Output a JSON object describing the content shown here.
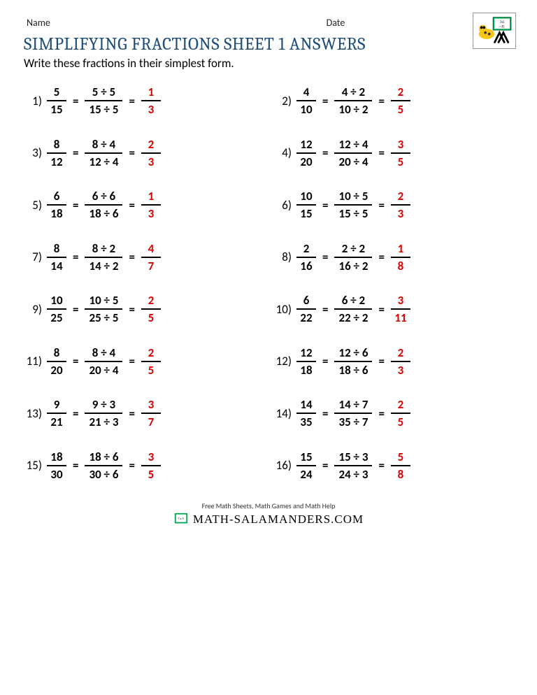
{
  "header": {
    "name_label": "Name",
    "date_label": "Date"
  },
  "title": "SIMPLIFYING FRACTIONS SHEET 1 ANSWERS",
  "instructions": "Write these fractions in their simplest form.",
  "colors": {
    "title_color": "#1f4e79",
    "answer_color": "#d90000",
    "text_color": "#000000",
    "bar_color": "#000000",
    "background": "#ffffff"
  },
  "typography": {
    "title_fontsize": 25,
    "body_fontsize": 17,
    "header_fontsize": 14,
    "font_weight_math": 700
  },
  "problems": [
    {
      "n": 1,
      "num": "5",
      "den": "15",
      "wn": "5 ÷ 5",
      "wd": "15 ÷ 5",
      "an": "1",
      "ad": "3"
    },
    {
      "n": 2,
      "num": "4",
      "den": "10",
      "wn": "4 ÷ 2",
      "wd": "10 ÷ 2",
      "an": "2",
      "ad": "5"
    },
    {
      "n": 3,
      "num": "8",
      "den": "12",
      "wn": "8 ÷ 4",
      "wd": "12 ÷ 4",
      "an": "2",
      "ad": "3"
    },
    {
      "n": 4,
      "num": "12",
      "den": "20",
      "wn": "12 ÷ 4",
      "wd": "20 ÷ 4",
      "an": "3",
      "ad": "5"
    },
    {
      "n": 5,
      "num": "6",
      "den": "18",
      "wn": "6 ÷ 6",
      "wd": "18 ÷ 6",
      "an": "1",
      "ad": "3"
    },
    {
      "n": 6,
      "num": "10",
      "den": "15",
      "wn": "10 ÷ 5",
      "wd": "15 ÷ 5",
      "an": "2",
      "ad": "3"
    },
    {
      "n": 7,
      "num": "8",
      "den": "14",
      "wn": "8 ÷ 2",
      "wd": "14 ÷ 2",
      "an": "4",
      "ad": "7"
    },
    {
      "n": 8,
      "num": "2",
      "den": "16",
      "wn": "2 ÷ 2",
      "wd": "16 ÷ 2",
      "an": "1",
      "ad": "8"
    },
    {
      "n": 9,
      "num": "10",
      "den": "25",
      "wn": "10 ÷ 5",
      "wd": "25 ÷ 5",
      "an": "2",
      "ad": "5"
    },
    {
      "n": 10,
      "num": "6",
      "den": "22",
      "wn": "6 ÷ 2",
      "wd": "22 ÷ 2",
      "an": "3",
      "ad": "11"
    },
    {
      "n": 11,
      "num": "8",
      "den": "20",
      "wn": "8 ÷ 4",
      "wd": "20 ÷ 4",
      "an": "2",
      "ad": "5"
    },
    {
      "n": 12,
      "num": "12",
      "den": "18",
      "wn": "12 ÷ 6",
      "wd": "18 ÷ 6",
      "an": "2",
      "ad": "3"
    },
    {
      "n": 13,
      "num": "9",
      "den": "21",
      "wn": "9 ÷ 3",
      "wd": "21 ÷ 3",
      "an": "3",
      "ad": "7"
    },
    {
      "n": 14,
      "num": "14",
      "den": "35",
      "wn": "14 ÷ 7",
      "wd": "35 ÷ 7",
      "an": "2",
      "ad": "5"
    },
    {
      "n": 15,
      "num": "18",
      "den": "30",
      "wn": "18 ÷ 6",
      "wd": "30 ÷ 6",
      "an": "3",
      "ad": "5"
    },
    {
      "n": 16,
      "num": "15",
      "den": "24",
      "wn": "15 ÷ 3",
      "wd": "24 ÷ 3",
      "an": "5",
      "ad": "8"
    }
  ],
  "footer": {
    "tagline": "Free Math Sheets, Math Games and Math Help",
    "site": "MATH-SALAMANDERS.COM"
  }
}
